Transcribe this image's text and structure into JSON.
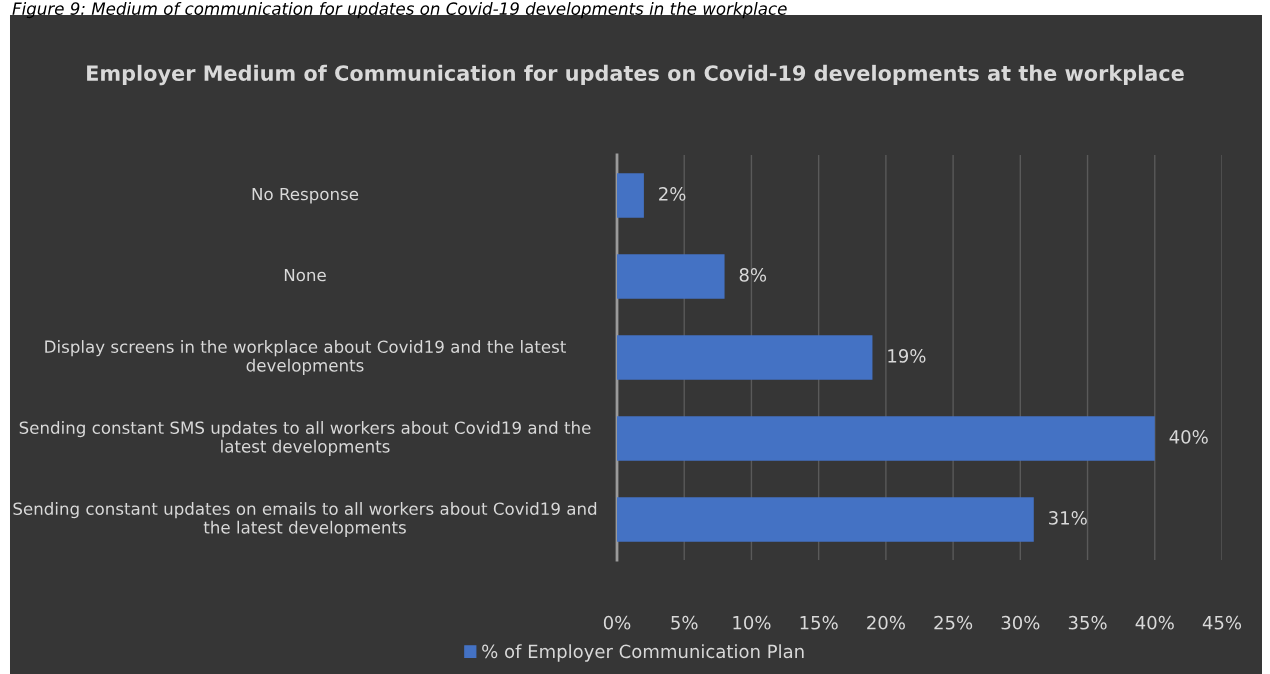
{
  "chart_data": {
    "type": "bar",
    "orientation": "horizontal",
    "title": "Employer Medium of Communication for updates on Covid-19 developments at the workplace",
    "annotations": [
      "Figure 9: Medium of communication for updates on Covid-19 developments in the workplace"
    ],
    "categories": [
      "No Response",
      "None",
      "Display screens in the workplace about Covid19 and the latest developments",
      "Sending constant SMS updates to all workers about Covid19 and the latest developments",
      "Sending constant updates on emails to all workers about Covid19 and the latest developments"
    ],
    "series": [
      {
        "name": "% of Employer Communication Plan",
        "color": "#4472c4",
        "values": [
          2,
          8,
          19,
          40,
          31
        ],
        "value_labels": [
          "2%",
          "8%",
          "19%",
          "40%",
          "31%"
        ]
      }
    ],
    "xlim": [
      0,
      45
    ],
    "xticks": [
      {
        "value": 0,
        "label": "0%"
      },
      {
        "value": 5,
        "label": "5%"
      },
      {
        "value": 10,
        "label": "10%"
      },
      {
        "value": 15,
        "label": "15%"
      },
      {
        "value": 20,
        "label": "20%"
      },
      {
        "value": 25,
        "label": "25%"
      },
      {
        "value": 30,
        "label": "30%"
      },
      {
        "value": 35,
        "label": "35%"
      },
      {
        "value": 40,
        "label": "40%"
      },
      {
        "value": 45,
        "label": "45%"
      }
    ],
    "grid": "x",
    "legend": "bottom"
  }
}
